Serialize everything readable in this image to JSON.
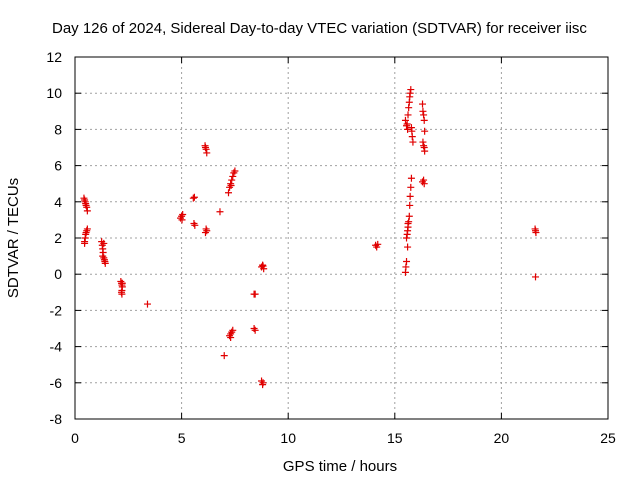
{
  "chart_data": {
    "type": "scatter",
    "title": "Day 126 of 2024, Sidereal Day-to-day VTEC variation (SDTVAR) for receiver iisc",
    "xlabel": "GPS time / hours",
    "ylabel": "SDTVAR / TECUs",
    "xlim": [
      0,
      25
    ],
    "ylim": [
      -8,
      12
    ],
    "xticks": [
      0,
      5,
      10,
      15,
      20,
      25
    ],
    "yticks": [
      -8,
      -6,
      -4,
      -2,
      0,
      2,
      4,
      6,
      8,
      10,
      12
    ],
    "grid": true,
    "marker": "+",
    "color": "#e00000",
    "series": [
      {
        "name": "SDTVAR",
        "points": [
          [
            0.42,
            4.2
          ],
          [
            0.45,
            4.1
          ],
          [
            0.48,
            4.0
          ],
          [
            0.5,
            3.9
          ],
          [
            0.52,
            3.8
          ],
          [
            0.55,
            3.7
          ],
          [
            0.58,
            3.5
          ],
          [
            0.45,
            1.8
          ],
          [
            0.48,
            2.0
          ],
          [
            0.5,
            2.2
          ],
          [
            0.52,
            2.3
          ],
          [
            0.55,
            2.4
          ],
          [
            0.58,
            2.5
          ],
          [
            0.45,
            1.7
          ],
          [
            1.25,
            1.8
          ],
          [
            1.28,
            1.6
          ],
          [
            1.3,
            1.4
          ],
          [
            1.32,
            1.2
          ],
          [
            1.3,
            1.0
          ],
          [
            1.35,
            0.9
          ],
          [
            1.38,
            0.8
          ],
          [
            1.4,
            0.7
          ],
          [
            1.42,
            0.6
          ],
          [
            1.35,
            1.7
          ],
          [
            2.15,
            -0.4
          ],
          [
            2.18,
            -0.5
          ],
          [
            2.2,
            -0.6
          ],
          [
            2.22,
            -0.7
          ],
          [
            2.2,
            -0.9
          ],
          [
            2.18,
            -1.0
          ],
          [
            2.2,
            -1.1
          ],
          [
            2.22,
            -0.5
          ],
          [
            3.4,
            -1.65
          ],
          [
            4.95,
            3.1
          ],
          [
            5.0,
            3.2
          ],
          [
            5.05,
            3.3
          ],
          [
            5.02,
            3.0
          ],
          [
            5.55,
            4.2
          ],
          [
            5.6,
            4.25
          ],
          [
            5.58,
            2.8
          ],
          [
            5.62,
            2.7
          ],
          [
            6.1,
            7.1
          ],
          [
            6.12,
            7.0
          ],
          [
            6.15,
            6.9
          ],
          [
            6.18,
            6.7
          ],
          [
            6.15,
            2.5
          ],
          [
            6.12,
            2.3
          ],
          [
            6.18,
            2.4
          ],
          [
            6.8,
            3.45
          ],
          [
            7.0,
            -4.5
          ],
          [
            7.2,
            4.5
          ],
          [
            7.25,
            4.8
          ],
          [
            7.3,
            5.0
          ],
          [
            7.35,
            5.2
          ],
          [
            7.4,
            5.4
          ],
          [
            7.45,
            5.6
          ],
          [
            7.5,
            5.7
          ],
          [
            7.32,
            4.9
          ],
          [
            7.25,
            -3.4
          ],
          [
            7.3,
            -3.3
          ],
          [
            7.35,
            -3.2
          ],
          [
            7.4,
            -3.1
          ],
          [
            7.3,
            -3.5
          ],
          [
            8.4,
            -1.1
          ],
          [
            8.45,
            -1.1
          ],
          [
            8.4,
            -3.0
          ],
          [
            8.45,
            -3.1
          ],
          [
            8.75,
            0.4
          ],
          [
            8.8,
            0.5
          ],
          [
            8.85,
            0.3
          ],
          [
            8.82,
            0.45
          ],
          [
            8.75,
            -5.9
          ],
          [
            8.8,
            -6.1
          ],
          [
            8.82,
            -6.0
          ],
          [
            14.1,
            1.6
          ],
          [
            14.15,
            1.5
          ],
          [
            14.2,
            1.65
          ],
          [
            15.5,
            8.5
          ],
          [
            15.55,
            8.2
          ],
          [
            15.6,
            8.0
          ],
          [
            15.62,
            8.8
          ],
          [
            15.65,
            9.2
          ],
          [
            15.68,
            9.5
          ],
          [
            15.7,
            9.8
          ],
          [
            15.72,
            10.0
          ],
          [
            15.75,
            10.2
          ],
          [
            15.78,
            8.1
          ],
          [
            15.8,
            7.9
          ],
          [
            15.82,
            7.6
          ],
          [
            15.85,
            7.3
          ],
          [
            15.58,
            8.3
          ],
          [
            15.5,
            0.1
          ],
          [
            15.52,
            0.4
          ],
          [
            15.55,
            0.7
          ],
          [
            15.55,
            2.0
          ],
          [
            15.58,
            2.2
          ],
          [
            15.6,
            2.4
          ],
          [
            15.62,
            2.6
          ],
          [
            15.65,
            2.9
          ],
          [
            15.68,
            3.2
          ],
          [
            15.7,
            3.8
          ],
          [
            15.72,
            4.3
          ],
          [
            15.75,
            4.8
          ],
          [
            15.78,
            5.3
          ],
          [
            15.6,
            1.5
          ],
          [
            15.62,
            2.8
          ],
          [
            16.3,
            9.4
          ],
          [
            16.32,
            9.0
          ],
          [
            16.35,
            8.8
          ],
          [
            16.38,
            8.5
          ],
          [
            16.4,
            7.9
          ],
          [
            16.32,
            7.3
          ],
          [
            16.35,
            7.1
          ],
          [
            16.38,
            7.0
          ],
          [
            16.4,
            6.8
          ],
          [
            16.3,
            5.1
          ],
          [
            16.35,
            5.2
          ],
          [
            16.38,
            5.0
          ],
          [
            21.6,
            2.4
          ],
          [
            21.62,
            2.3
          ],
          [
            21.58,
            2.5
          ],
          [
            21.6,
            -0.15
          ]
        ]
      }
    ]
  }
}
